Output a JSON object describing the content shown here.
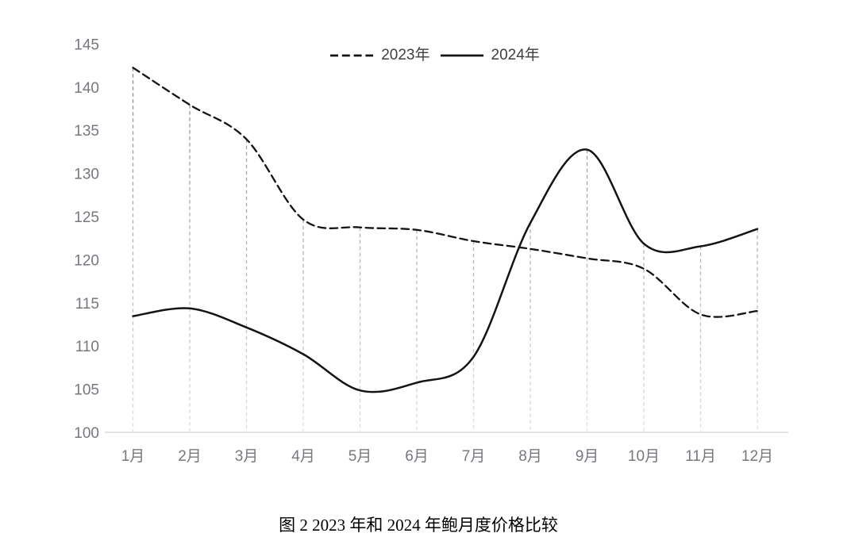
{
  "figure": {
    "caption": "图 2  2023 年和 2024 年鲍月度价格比较"
  },
  "legend": {
    "items": [
      {
        "label": "2023年",
        "style": "dashed"
      },
      {
        "label": "2024年",
        "style": "solid"
      }
    ]
  },
  "chart_data": {
    "type": "line",
    "smoothed": true,
    "title": "",
    "xlabel": "",
    "ylabel": "",
    "categories": [
      "1月",
      "2月",
      "3月",
      "4月",
      "5月",
      "6月",
      "7月",
      "8月",
      "9月",
      "10月",
      "11月",
      "12月"
    ],
    "series": [
      {
        "name": "2023年",
        "line_style": "dashed",
        "values": [
          142.3,
          138.0,
          134.0,
          124.7,
          123.8,
          123.5,
          122.2,
          121.3,
          120.2,
          119.0,
          113.7,
          114.1
        ]
      },
      {
        "name": "2024年",
        "line_style": "solid",
        "values": [
          113.5,
          114.4,
          112.2,
          109.1,
          104.9,
          105.8,
          108.8,
          124.3,
          132.8,
          121.9,
          121.6,
          123.6
        ]
      }
    ],
    "ylim": [
      100,
      145
    ],
    "ytick_step": 5,
    "y_ticks": [
      100,
      105,
      110,
      115,
      120,
      125,
      130,
      135,
      140,
      145
    ],
    "grid": "vertical-dashed-drop-lines-per-month",
    "legend_position": "top-center",
    "colors": {
      "series_line": "#141414",
      "axis_label": "#75787d",
      "axis_line": "#d8d8d8",
      "drop_line_top": "#8a8a8a",
      "drop_line_bottom": "#dedede",
      "legend_text": "#3f3f3f",
      "caption_text": "#000000",
      "background": "#ffffff"
    }
  }
}
